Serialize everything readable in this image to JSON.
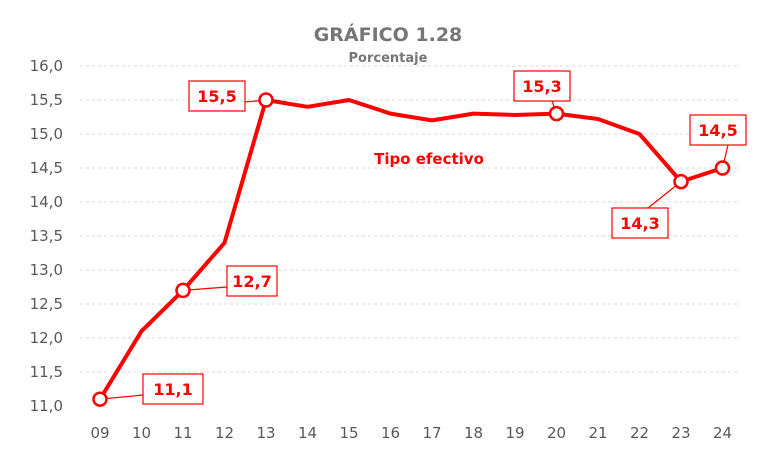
{
  "chart_data": {
    "type": "line",
    "title": "GRÁFICO 1.28",
    "subtitle": "Porcentaje",
    "xlabel": "",
    "ylabel": "",
    "categories": [
      "09",
      "10",
      "11",
      "12",
      "13",
      "14",
      "15",
      "16",
      "17",
      "18",
      "19",
      "20",
      "21",
      "22",
      "23",
      "24"
    ],
    "ylim": [
      11.0,
      16.0
    ],
    "yticks": [
      "11,0",
      "11,5",
      "12,0",
      "12,5",
      "13,0",
      "13,5",
      "14,0",
      "14,5",
      "15,0",
      "15,5",
      "16,0"
    ],
    "grid": true,
    "series": [
      {
        "name": "Tipo efectivo",
        "color": "#ff0000",
        "values": [
          11.1,
          12.1,
          12.7,
          13.4,
          15.5,
          15.4,
          15.5,
          15.3,
          15.2,
          15.3,
          15.28,
          15.3,
          15.22,
          15.0,
          14.3,
          14.5
        ]
      }
    ],
    "annotations": [
      {
        "category": "09",
        "label": "11,1"
      },
      {
        "category": "11",
        "label": "12,7"
      },
      {
        "category": "13",
        "label": "15,5"
      },
      {
        "category": "20",
        "label": "15,3"
      },
      {
        "category": "23",
        "label": "14,3"
      },
      {
        "category": "24",
        "label": "14,5"
      }
    ]
  }
}
